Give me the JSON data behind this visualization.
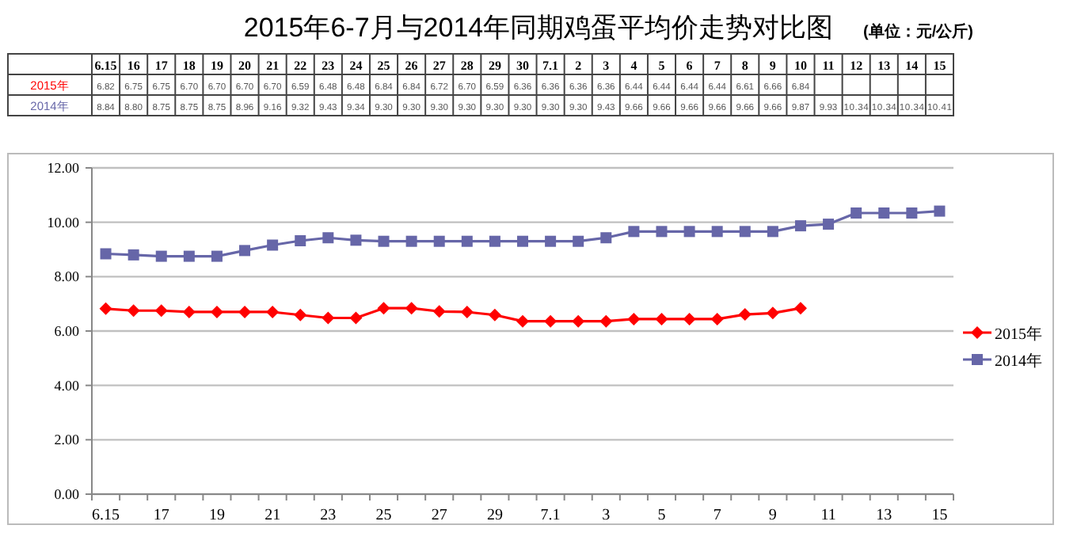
{
  "chart_data": {
    "type": "line",
    "title": "2015年6-7月与2014年同期鸡蛋平均价走势对比图",
    "subtitle": "(单位：元/公斤)",
    "categories": [
      "6.15",
      "16",
      "17",
      "18",
      "19",
      "20",
      "21",
      "22",
      "23",
      "24",
      "25",
      "26",
      "27",
      "28",
      "29",
      "30",
      "7.1",
      "2",
      "3",
      "4",
      "5",
      "6",
      "7",
      "8",
      "9",
      "10",
      "11",
      "12",
      "13",
      "14",
      "15"
    ],
    "series": [
      {
        "name": "2015年",
        "color": "#ff0000",
        "marker": "diamond",
        "values": [
          6.82,
          6.75,
          6.75,
          6.7,
          6.7,
          6.7,
          6.7,
          6.59,
          6.48,
          6.48,
          6.84,
          6.84,
          6.72,
          6.7,
          6.59,
          6.36,
          6.36,
          6.36,
          6.36,
          6.44,
          6.44,
          6.44,
          6.44,
          6.61,
          6.66,
          6.84,
          null,
          null,
          null,
          null,
          null
        ],
        "value_labels": [
          "6.82",
          "6.75",
          "6.75",
          "6.70",
          "6.70",
          "6.70",
          "6.70",
          "6.59",
          "6.48",
          "6.48",
          "6.84",
          "6.84",
          "6.72",
          "6.70",
          "6.59",
          "6.36",
          "6.36",
          "6.36",
          "6.36",
          "6.44",
          "6.44",
          "6.44",
          "6.44",
          "6.61",
          "6.66",
          "6.84",
          null,
          null,
          null,
          null,
          null
        ]
      },
      {
        "name": "2014年",
        "color": "#6666a8",
        "marker": "square",
        "values": [
          8.84,
          8.8,
          8.75,
          8.75,
          8.75,
          8.96,
          9.16,
          9.32,
          9.43,
          9.34,
          9.3,
          9.3,
          9.3,
          9.3,
          9.3,
          9.3,
          9.3,
          9.3,
          9.43,
          9.66,
          9.66,
          9.66,
          9.66,
          9.66,
          9.66,
          9.87,
          9.93,
          10.34,
          10.34,
          10.34,
          10.41
        ],
        "value_labels": [
          "8.84",
          "8.80",
          "8.75",
          "8.75",
          "8.75",
          "8.96",
          "9.16",
          "9.32",
          "9.43",
          "9.34",
          "9.30",
          "9.30",
          "9.30",
          "9.30",
          "9.30",
          "9.30",
          "9.30",
          "9.30",
          "9.43",
          "9.66",
          "9.66",
          "9.66",
          "9.66",
          "9.66",
          "9.66",
          "9.87",
          "9.93",
          "10.34",
          "10.34",
          "10.34",
          "10.41"
        ]
      }
    ],
    "ylim": [
      0,
      12
    ],
    "yticks": [
      {
        "value": 0,
        "label": "0.00"
      },
      {
        "value": 2,
        "label": "2.00"
      },
      {
        "value": 4,
        "label": "4.00"
      },
      {
        "value": 6,
        "label": "6.00"
      },
      {
        "value": 8,
        "label": "8.00"
      },
      {
        "value": 10,
        "label": "10.00"
      },
      {
        "value": 12,
        "label": "12.00"
      }
    ],
    "grid": "y",
    "legend": "right"
  }
}
